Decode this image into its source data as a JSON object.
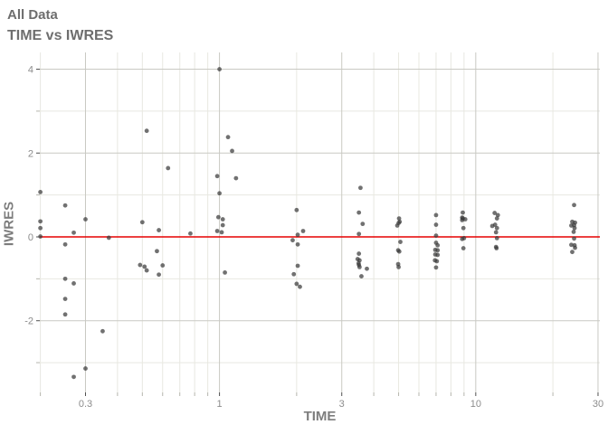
{
  "header": {
    "title": "All Data",
    "subtitle": "TIME vs IWRES"
  },
  "chart_data": {
    "type": "scatter",
    "title": "All Data",
    "subtitle": "TIME vs IWRES",
    "xlabel": "TIME",
    "ylabel": "IWRES",
    "x_scale": "log10",
    "x_range": [
      0.199,
      30.5
    ],
    "y_range": [
      -3.71,
      4.4
    ],
    "x_ticks": [
      {
        "v": 0.3,
        "label": "0.3"
      },
      {
        "v": 1,
        "label": "1"
      },
      {
        "v": 3,
        "label": "3"
      },
      {
        "v": 10,
        "label": "10"
      },
      {
        "v": 30,
        "label": "30"
      }
    ],
    "x_minor_ticks": [
      0.2,
      0.4,
      0.5,
      0.6,
      0.7,
      0.8,
      0.9,
      2,
      4,
      5,
      6,
      7,
      8,
      9,
      20
    ],
    "y_ticks": [
      {
        "v": 4,
        "label": "4"
      },
      {
        "v": 2,
        "label": "2"
      },
      {
        "v": 0,
        "label": "0"
      },
      {
        "v": -2,
        "label": "-2"
      }
    ],
    "y_minor_ticks": [
      3,
      1,
      -1,
      -3
    ],
    "grid": true,
    "legend": "none",
    "reference_line": {
      "y": 0,
      "color": "#e60000"
    },
    "colors": {
      "point": "#3a3a3a",
      "grid_major": "#c9c9c3",
      "grid_minor": "#e8e8e1",
      "tick_major": "#4f4f4f",
      "tick_minor": "#b5b5ad",
      "panel_bg": "#ffffff"
    },
    "points": [
      [
        0.2,
        1.07
      ],
      [
        0.2,
        0.37
      ],
      [
        0.2,
        0.21
      ],
      [
        0.2,
        0.01
      ],
      [
        0.25,
        0.75
      ],
      [
        0.25,
        -0.18
      ],
      [
        0.25,
        -1.0
      ],
      [
        0.25,
        -1.48
      ],
      [
        0.25,
        -1.85
      ],
      [
        0.27,
        0.1
      ],
      [
        0.27,
        -1.11
      ],
      [
        0.27,
        -3.34
      ],
      [
        0.3,
        0.42
      ],
      [
        0.3,
        -3.14
      ],
      [
        0.35,
        -2.25
      ],
      [
        0.37,
        -0.02
      ],
      [
        0.52,
        2.53
      ],
      [
        0.5,
        0.35
      ],
      [
        0.49,
        -0.67
      ],
      [
        0.51,
        -0.71
      ],
      [
        0.52,
        -0.8
      ],
      [
        0.63,
        1.64
      ],
      [
        0.58,
        0.16
      ],
      [
        0.57,
        -0.34
      ],
      [
        0.6,
        -0.68
      ],
      [
        0.58,
        -0.9
      ],
      [
        0.77,
        0.08
      ],
      [
        1.0,
        4.0
      ],
      [
        1.08,
        2.38
      ],
      [
        1.12,
        2.05
      ],
      [
        0.98,
        1.45
      ],
      [
        1.16,
        1.4
      ],
      [
        1.0,
        1.04
      ],
      [
        0.99,
        0.47
      ],
      [
        1.03,
        0.42
      ],
      [
        1.03,
        0.28
      ],
      [
        0.98,
        0.14
      ],
      [
        1.02,
        0.11
      ],
      [
        1.05,
        -0.85
      ],
      [
        2.0,
        0.64
      ],
      [
        2.12,
        0.14
      ],
      [
        2.02,
        0.05
      ],
      [
        1.93,
        -0.08
      ],
      [
        2.02,
        -0.18
      ],
      [
        2.02,
        -0.69
      ],
      [
        1.95,
        -0.89
      ],
      [
        2.0,
        -1.12
      ],
      [
        2.06,
        -1.19
      ],
      [
        3.55,
        1.17
      ],
      [
        3.5,
        0.58
      ],
      [
        3.62,
        0.31
      ],
      [
        3.5,
        0.07
      ],
      [
        3.5,
        -0.4
      ],
      [
        3.46,
        -0.53
      ],
      [
        3.52,
        -0.56
      ],
      [
        3.49,
        -0.63
      ],
      [
        3.5,
        -0.67
      ],
      [
        3.52,
        -0.72
      ],
      [
        3.76,
        -0.76
      ],
      [
        3.58,
        -0.94
      ],
      [
        5.02,
        0.44
      ],
      [
        5.05,
        0.36
      ],
      [
        5.0,
        0.33
      ],
      [
        4.94,
        0.27
      ],
      [
        5.08,
        -0.12
      ],
      [
        4.98,
        -0.32
      ],
      [
        5.03,
        -0.35
      ],
      [
        4.98,
        -0.65
      ],
      [
        5.0,
        -0.72
      ],
      [
        7.0,
        0.52
      ],
      [
        7.0,
        0.29
      ],
      [
        7.0,
        0.03
      ],
      [
        7.0,
        -0.14
      ],
      [
        7.1,
        -0.2
      ],
      [
        6.95,
        -0.31
      ],
      [
        7.1,
        -0.32
      ],
      [
        6.95,
        -0.42
      ],
      [
        7.1,
        -0.43
      ],
      [
        6.93,
        -0.56
      ],
      [
        7.05,
        -0.58
      ],
      [
        7.0,
        -0.73
      ],
      [
        8.9,
        0.58
      ],
      [
        8.85,
        0.46
      ],
      [
        8.9,
        0.44
      ],
      [
        9.1,
        0.42
      ],
      [
        8.85,
        0.4
      ],
      [
        8.95,
        0.21
      ],
      [
        9.0,
        -0.03
      ],
      [
        8.85,
        -0.05
      ],
      [
        8.95,
        -0.27
      ],
      [
        11.85,
        0.57
      ],
      [
        12.2,
        0.52
      ],
      [
        12.1,
        0.44
      ],
      [
        11.9,
        0.29
      ],
      [
        11.6,
        0.26
      ],
      [
        12.1,
        0.21
      ],
      [
        12.0,
        0.11
      ],
      [
        12.1,
        -0.03
      ],
      [
        12.0,
        -0.24
      ],
      [
        12.05,
        -0.27
      ],
      [
        24.2,
        0.76
      ],
      [
        23.8,
        0.36
      ],
      [
        24.4,
        0.34
      ],
      [
        24.2,
        0.28
      ],
      [
        23.6,
        0.27
      ],
      [
        24.3,
        0.21
      ],
      [
        24.1,
        0.12
      ],
      [
        24.2,
        -0.04
      ],
      [
        23.6,
        -0.19
      ],
      [
        24.3,
        -0.2
      ],
      [
        24.4,
        -0.26
      ],
      [
        23.8,
        -0.36
      ]
    ]
  }
}
